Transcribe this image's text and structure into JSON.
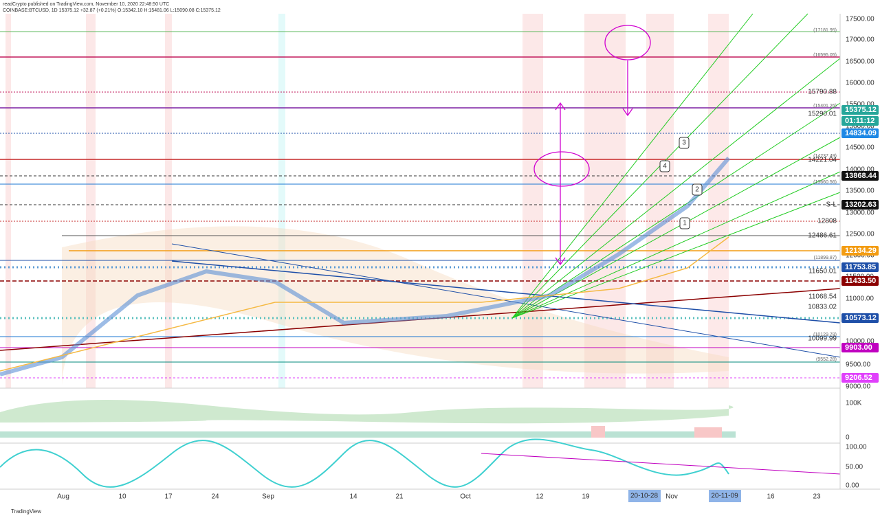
{
  "header": {
    "line1": "readCrypto published on TradingView.com, November 10, 2020 22:48:50 UTC",
    "line2": "COINBASE:BTCUSD, 1D 15375.12 +32.87 (+0.21%) O:15342.10 H:15481.06 L:15090.08 C:15375.12"
  },
  "price_axis": {
    "ticks": [
      "17500.00",
      "17000.00",
      "16500.00",
      "16000.00",
      "15500.00",
      "15000.00",
      "14500.00",
      "14000.00",
      "13500.00",
      "13000.00",
      "12500.00",
      "12000.00",
      "11500.00",
      "11000.00",
      "10500.00",
      "10000.00",
      "9500.00",
      "9000.00"
    ]
  },
  "price_labels": [
    "15375.12",
    "01:11:12",
    "14834.09",
    "13868.44",
    "13202.63",
    "12134.29",
    "11753.85",
    "11433.50",
    "10573.12",
    "9903.00",
    "9206.52"
  ],
  "chart_labels": [
    "15790.88",
    "15290.01",
    "14221.04",
    "S-L",
    "12808",
    "12486.61",
    "11650.01",
    "11068.54",
    "10833.02",
    "10099.99"
  ],
  "small_labels": [
    "(17181.95)",
    "(16595.05)",
    "(15401.26)",
    "(14237.49)",
    "(13660.56)",
    "(11899.87)",
    "(10129.78)",
    "(9552.28)"
  ],
  "callouts": [
    "1",
    "2",
    "3",
    "4"
  ],
  "volume_axis": [
    "100K",
    "0"
  ],
  "oscillator_axis": [
    "100.00",
    "50.00",
    "0.00"
  ],
  "time_axis": {
    "ticks": [
      "Aug",
      "10",
      "17",
      "24",
      "Sep",
      "14",
      "21",
      "Oct",
      "12",
      "19",
      "Nov",
      "16",
      "23"
    ],
    "highlights": [
      "20-10-28",
      "20-11-09"
    ]
  },
  "footer": "TradingView"
}
